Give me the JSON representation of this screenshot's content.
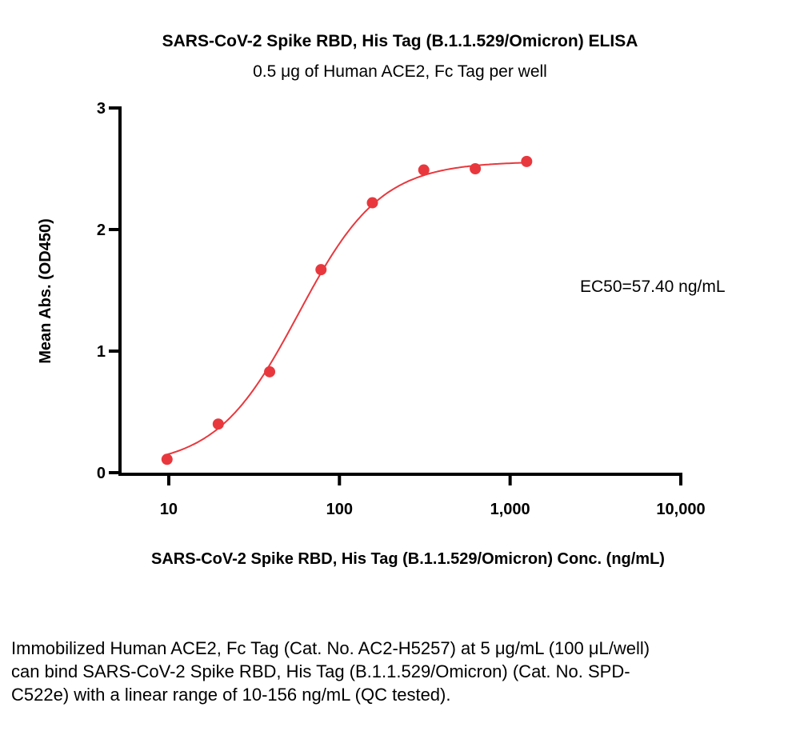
{
  "chart_data": {
    "type": "scatter",
    "title": "SARS-CoV-2 Spike RBD, His Tag (B.1.1.529/Omicron) ELISA",
    "subtitle": "0.5 μg of Human ACE2, Fc Tag per well",
    "xlabel": "SARS-CoV-2 Spike RBD, His Tag (B.1.1.529/Omicron) Conc. (ng/mL)",
    "ylabel": "Mean Abs. (OD450)",
    "xscale": "log",
    "xlim": [
      5.07,
      10000
    ],
    "ylim": [
      0,
      3
    ],
    "xticks": [
      10,
      100,
      1000,
      10000
    ],
    "xtick_labels": [
      "10",
      "100",
      "1,000",
      "10,000"
    ],
    "yticks": [
      0,
      1,
      2,
      3
    ],
    "ytick_labels": [
      "0",
      "1",
      "2",
      "3"
    ],
    "grid": false,
    "color": "#e8383d",
    "x": [
      9.77,
      19.5,
      39,
      78,
      156,
      312,
      625,
      1250
    ],
    "y": [
      0.11,
      0.4,
      0.83,
      1.67,
      2.22,
      2.49,
      2.5,
      2.56
    ],
    "fit": {
      "model": "4PL",
      "bottom": 0.05,
      "top": 2.56,
      "ec50": 57.4,
      "hill": 1.8,
      "x_range": [
        9.77,
        1250
      ]
    },
    "annotation": "EC50=57.40 ng/mL"
  },
  "caption": "Immobilized Human ACE2, Fc Tag (Cat. No. AC2-H5257) at 5 μg/mL (100 μL/well) can bind SARS-CoV-2 Spike RBD, His Tag (B.1.1.529/Omicron) (Cat. No. SPD-C522e) with a linear range of 10-156 ng/mL (QC tested)."
}
